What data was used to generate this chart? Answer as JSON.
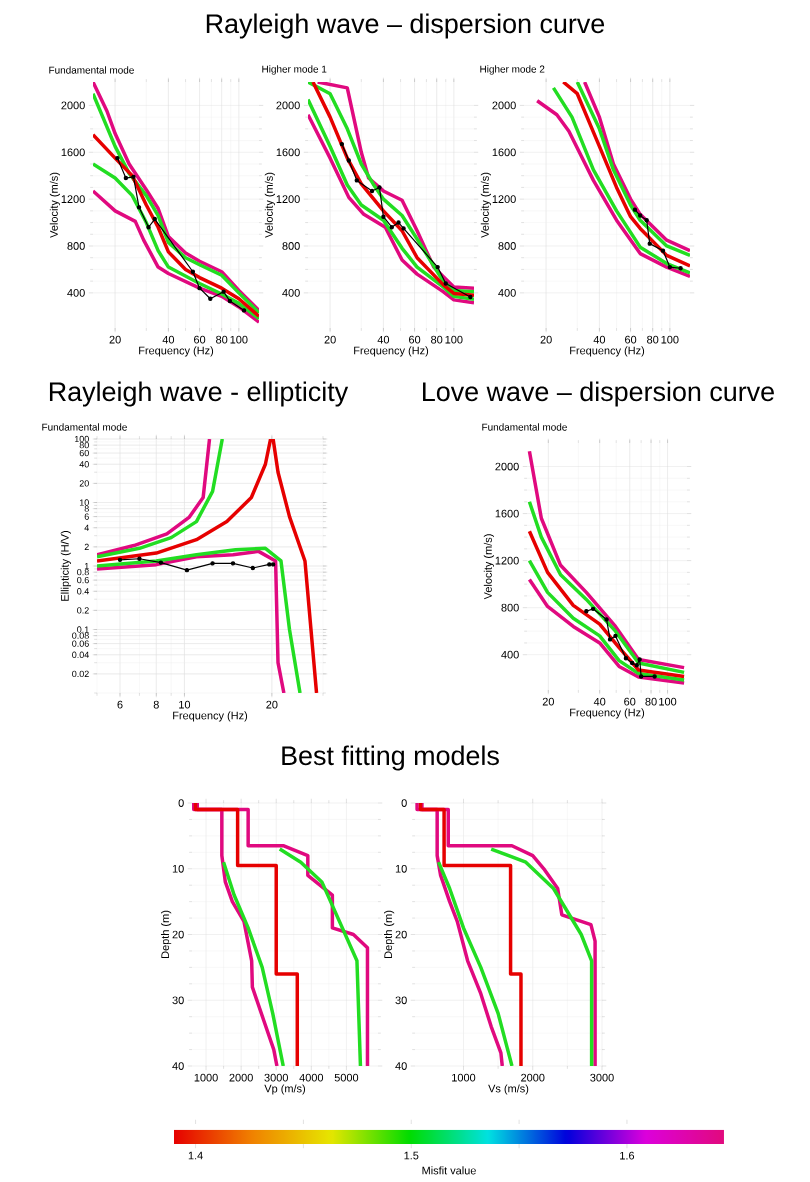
{
  "chart_data": [
    {
      "type": "line",
      "title": "Rayleigh wave – dispersion curve",
      "subtitle": "Fundamental mode",
      "xlabel": "Frequency (Hz)",
      "ylabel": "Velocity (m/s)",
      "log": "x",
      "grid": true,
      "xlim": [
        15,
        130
      ],
      "ylim": [
        100,
        2200
      ],
      "xticks": [
        20,
        40,
        60,
        80,
        100
      ],
      "yticks": [
        400,
        800,
        1200,
        1600,
        2000
      ],
      "series": [
        {
          "color": "#e0097f",
          "x": [
            15,
            18,
            20,
            24,
            30,
            35,
            40,
            50,
            60,
            80,
            100,
            130
          ],
          "values": [
            2200,
            1950,
            1760,
            1500,
            1280,
            1120,
            880,
            740,
            670,
            580,
            420,
            250
          ]
        },
        {
          "color": "#e0097f",
          "x": [
            15,
            20,
            26,
            29,
            35,
            40,
            60,
            80,
            100,
            130
          ],
          "values": [
            1270,
            1100,
            1010,
            850,
            620,
            565,
            440,
            370,
            280,
            150
          ]
        },
        {
          "color": "#22dd22",
          "x": [
            15,
            20,
            24,
            30,
            35,
            40,
            50,
            60,
            80,
            100,
            130
          ],
          "values": [
            2100,
            1650,
            1420,
            1230,
            1060,
            830,
            700,
            640,
            550,
            400,
            230
          ]
        },
        {
          "color": "#22dd22",
          "x": [
            15,
            20,
            25,
            30,
            35,
            40,
            60,
            80,
            100,
            130
          ],
          "values": [
            1500,
            1380,
            1230,
            1000,
            760,
            620,
            480,
            390,
            310,
            180
          ]
        },
        {
          "color": "#e60000",
          "x": [
            15,
            20,
            25,
            30,
            35,
            40,
            50,
            60,
            80,
            100,
            130
          ],
          "values": [
            1750,
            1550,
            1400,
            1150,
            960,
            750,
            600,
            530,
            440,
            350,
            200
          ]
        },
        {
          "color": "#000000",
          "marker": "circle",
          "x": [
            20.6,
            23,
            25.4,
            27.3,
            30.9,
            33.5,
            55,
            60,
            69,
            82,
            89,
            107
          ],
          "values": [
            1550,
            1380,
            1390,
            1130,
            960,
            1030,
            580,
            440,
            350,
            410,
            330,
            250
          ]
        }
      ]
    },
    {
      "type": "line",
      "subtitle": "Higher mode 1",
      "xlabel": "Frequency (Hz)",
      "ylabel": "Velocity (m/s)",
      "log": "x",
      "grid": true,
      "xlim": [
        15,
        130
      ],
      "ylim": [
        100,
        2200
      ],
      "xticks": [
        20,
        40,
        60,
        80,
        100
      ],
      "yticks": [
        400,
        800,
        1200,
        1600,
        2000
      ],
      "series": [
        {
          "color": "#e0097f",
          "x": [
            17,
            25,
            30,
            33,
            40,
            51,
            62,
            77,
            87,
            100,
            130
          ],
          "values": [
            2200,
            2150,
            1600,
            1380,
            1270,
            1190,
            930,
            620,
            540,
            450,
            440
          ]
        },
        {
          "color": "#e0097f",
          "x": [
            15,
            20,
            25.5,
            31,
            41,
            51,
            62,
            87,
            100,
            130
          ],
          "values": [
            1920,
            1550,
            1215,
            1070,
            960,
            680,
            560,
            410,
            340,
            315
          ]
        },
        {
          "color": "#22dd22",
          "x": [
            15,
            20,
            25,
            30,
            35,
            40,
            51,
            62,
            87,
            100,
            130
          ],
          "values": [
            2200,
            2100,
            1800,
            1500,
            1330,
            1200,
            1060,
            860,
            500,
            420,
            410
          ]
        },
        {
          "color": "#22dd22",
          "x": [
            15,
            20,
            25,
            30,
            40,
            51,
            62,
            87,
            100,
            130
          ],
          "values": [
            2050,
            1650,
            1320,
            1150,
            1020,
            780,
            620,
            450,
            370,
            345
          ]
        },
        {
          "color": "#e60000",
          "x": [
            16,
            20,
            25,
            30,
            40,
            51,
            62,
            87,
            100,
            130
          ],
          "values": [
            2200,
            1900,
            1550,
            1330,
            1100,
            930,
            700,
            470,
            395,
            380
          ]
        },
        {
          "color": "#000000",
          "marker": "circle",
          "x": [
            23.3,
            25.5,
            28.3,
            34.5,
            38,
            40,
            44.6,
            48.7,
            52,
            81,
            90,
            124
          ],
          "values": [
            1670,
            1530,
            1360,
            1270,
            1300,
            1050,
            960,
            1000,
            950,
            620,
            480,
            365
          ]
        }
      ]
    },
    {
      "type": "line",
      "subtitle": "Higher mode 2",
      "xlabel": "Frequency (Hz)",
      "ylabel": "Velocity (m/s)",
      "log": "x",
      "grid": true,
      "xlim": [
        15,
        130
      ],
      "ylim": [
        100,
        2200
      ],
      "xticks": [
        20,
        40,
        60,
        80,
        100
      ],
      "yticks": [
        400,
        800,
        1200,
        1600,
        2000
      ],
      "series": [
        {
          "color": "#e0097f",
          "x": [
            33,
            40,
            48,
            60,
            68,
            96,
            130
          ],
          "values": [
            2200,
            1900,
            1500,
            1200,
            1070,
            850,
            760
          ]
        },
        {
          "color": "#e0097f",
          "x": [
            17.8,
            23,
            26.9,
            37,
            50,
            68,
            96,
            130
          ],
          "values": [
            2040,
            1920,
            1780,
            1360,
            1020,
            735,
            620,
            540
          ]
        },
        {
          "color": "#22dd22",
          "x": [
            30,
            40,
            48,
            60,
            68,
            96,
            130
          ],
          "values": [
            2200,
            1800,
            1450,
            1150,
            1020,
            800,
            720
          ]
        },
        {
          "color": "#22dd22",
          "x": [
            22,
            28,
            37,
            50,
            68,
            96,
            130
          ],
          "values": [
            2150,
            1900,
            1450,
            1100,
            790,
            650,
            570
          ]
        },
        {
          "color": "#e60000",
          "x": [
            25,
            30,
            40,
            50,
            60,
            68,
            96,
            130
          ],
          "values": [
            2200,
            2100,
            1650,
            1300,
            1050,
            950,
            720,
            630
          ]
        },
        {
          "color": "#000000",
          "marker": "circle",
          "x": [
            63.5,
            68,
            74,
            77,
            91.5,
            100,
            115
          ],
          "values": [
            1110,
            1060,
            1020,
            820,
            760,
            620,
            610
          ]
        }
      ]
    },
    {
      "type": "line",
      "title": "Rayleigh wave - ellipticity",
      "subtitle": "Fundamental mode",
      "xlabel": "Frequency (Hz)",
      "ylabel": "Ellipticity (H/V)",
      "log": "xy",
      "grid": true,
      "xlim": [
        5,
        30
      ],
      "ylim": [
        0.01,
        100
      ],
      "xticks": [
        6,
        8,
        10,
        20
      ],
      "yticks": [
        0.02,
        0.04,
        0.06,
        0.08,
        0.1,
        0.2,
        0.4,
        0.6,
        0.8,
        1,
        2,
        4,
        6,
        8,
        10,
        20,
        40,
        60,
        80,
        100
      ],
      "series": [
        {
          "color": "#e0097f",
          "x": [
            5,
            6.7,
            8.7,
            10.4,
            11.6,
            12.2
          ],
          "values": [
            1.5,
            2.1,
            3.2,
            5.9,
            12,
            100
          ]
        },
        {
          "color": "#e0097f",
          "x": [
            5,
            8,
            11,
            14.7,
            18,
            20.6,
            21,
            22
          ],
          "values": [
            0.9,
            1.05,
            1.4,
            1.5,
            1.7,
            1.2,
            0.03,
            0.01
          ]
        },
        {
          "color": "#22dd22",
          "x": [
            5,
            7,
            9,
            11,
            12.5,
            13.5
          ],
          "values": [
            1.4,
            1.9,
            2.8,
            5,
            15,
            100
          ]
        },
        {
          "color": "#22dd22",
          "x": [
            5,
            8,
            11,
            15,
            19,
            21.5,
            23,
            25
          ],
          "values": [
            1.0,
            1.2,
            1.5,
            1.8,
            1.9,
            1.2,
            0.1,
            0.01
          ]
        },
        {
          "color": "#e60000",
          "x": [
            5,
            8,
            11,
            14,
            17,
            19,
            19.8,
            20.2,
            21,
            23,
            26,
            28.5
          ],
          "values": [
            1.2,
            1.6,
            2.6,
            5,
            12,
            40,
            100,
            100,
            30,
            6,
            1.2,
            0.01
          ]
        },
        {
          "color": "#000000",
          "marker": "circle",
          "x": [
            6,
            7,
            8.3,
            10.2,
            12.5,
            14.7,
            17.2,
            19.6,
            20.2
          ],
          "values": [
            1.25,
            1.3,
            1.13,
            0.86,
            1.1,
            1.1,
            0.93,
            1.06,
            1.06
          ]
        }
      ]
    },
    {
      "type": "line",
      "title": "Love wave – dispersion curve",
      "subtitle": "Fundamental mode",
      "xlabel": "Frequency (Hz)",
      "ylabel": "Velocity (m/s)",
      "log": "x",
      "grid": true,
      "xlim": [
        15,
        130
      ],
      "ylim": [
        100,
        2200
      ],
      "xticks": [
        20,
        40,
        60,
        80,
        100
      ],
      "yticks": [
        400,
        800,
        1200,
        1600,
        2000
      ],
      "series": [
        {
          "color": "#e0097f",
          "x": [
            15.5,
            18.2,
            23.6,
            33.4,
            49.5,
            67.6,
            125
          ],
          "values": [
            2130,
            1560,
            1160,
            930,
            640,
            360,
            290
          ]
        },
        {
          "color": "#e0097f",
          "x": [
            15.5,
            19.8,
            28,
            40,
            52,
            67.6,
            125
          ],
          "values": [
            1040,
            810,
            640,
            500,
            300,
            210,
            160
          ]
        },
        {
          "color": "#22dd22",
          "x": [
            15.5,
            18.2,
            23.6,
            33.4,
            49.5,
            67.6,
            125
          ],
          "values": [
            1700,
            1400,
            1080,
            870,
            600,
            330,
            250
          ]
        },
        {
          "color": "#22dd22",
          "x": [
            15.5,
            19.8,
            28,
            40,
            52,
            67.6,
            125
          ],
          "values": [
            1200,
            930,
            710,
            560,
            350,
            240,
            185
          ]
        },
        {
          "color": "#e60000",
          "x": [
            15.5,
            19.8,
            28,
            40,
            52,
            67.6,
            125
          ],
          "values": [
            1450,
            1100,
            820,
            660,
            460,
            270,
            215
          ]
        },
        {
          "color": "#000000",
          "marker": "circle",
          "x": [
            33.4,
            36.6,
            43.9,
            46,
            49.5,
            57,
            62,
            66,
            68.6,
            70,
            84
          ],
          "values": [
            770,
            790,
            700,
            530,
            560,
            370,
            330,
            310,
            360,
            215,
            215
          ]
        }
      ]
    },
    {
      "type": "line",
      "title": "Best fitting models",
      "xlabel": "Vp (m/s)",
      "ylabel": "Depth (m)",
      "grid": true,
      "xlim": [
        600,
        5900
      ],
      "ylim": [
        40,
        0
      ],
      "xticks": [
        1000,
        2000,
        3000,
        4000,
        5000
      ],
      "yticks": [
        0,
        10,
        20,
        30,
        40
      ],
      "series": [
        {
          "color": "#e0097f",
          "x": [
            750,
            750,
            2200,
            2200,
            3200,
            3900,
            3900,
            4600,
            4600,
            5200,
            5600,
            5600
          ],
          "values": [
            0,
            1,
            1,
            6.5,
            6.5,
            8,
            11,
            14,
            19,
            20,
            22,
            40
          ]
        },
        {
          "color": "#e0097f",
          "x": [
            650,
            650,
            1450,
            1450,
            1550,
            1750,
            2080,
            2300,
            2320,
            2640,
            2930,
            3020
          ],
          "values": [
            0,
            1,
            1,
            8,
            12,
            15,
            18,
            24,
            28,
            33,
            37.5,
            40
          ]
        },
        {
          "color": "#22dd22",
          "x": [
            3100,
            3700,
            4300,
            4800,
            5300,
            5400
          ],
          "values": [
            7,
            9,
            12,
            18,
            24,
            40
          ]
        },
        {
          "color": "#22dd22",
          "x": [
            1500,
            1800,
            2200,
            2600,
            2900,
            3200
          ],
          "values": [
            9,
            14,
            19,
            25,
            32,
            40
          ]
        },
        {
          "color": "#e60000",
          "x": [
            700,
            700,
            1900,
            1900,
            3000,
            3000,
            3600,
            3600
          ],
          "values": [
            0,
            1,
            1,
            9.5,
            9.5,
            26,
            26,
            40
          ]
        }
      ]
    },
    {
      "type": "line",
      "xlabel": "Vs (m/s)",
      "ylabel": "Depth (m)",
      "grid": true,
      "xlim": [
        300,
        3000
      ],
      "ylim": [
        40,
        0
      ],
      "xticks": [
        1000,
        2000,
        3000
      ],
      "yticks": [
        0,
        10,
        20,
        30,
        40
      ],
      "clabel": "Misfit value",
      "clim": [
        1.39,
        1.645
      ],
      "cticks": [
        1.4,
        {
          "value": 1.45,
          "label": null
        },
        1.5,
        {
          "value": 1.55,
          "label": null
        },
        1.6
      ],
      "series": [
        {
          "color": "#e0097f",
          "x": [
            400,
            400,
            780,
            780,
            1700,
            2000,
            2160,
            2360,
            2420,
            2840,
            2900,
            2900
          ],
          "values": [
            0,
            1,
            1,
            6.5,
            6.5,
            8,
            10,
            13,
            17,
            18.5,
            21,
            40
          ]
        },
        {
          "color": "#e0097f",
          "x": [
            330,
            330,
            620,
            620,
            670,
            800,
            910,
            1060,
            1250,
            1400,
            1540,
            1560
          ],
          "values": [
            0,
            1,
            1,
            8,
            11,
            15,
            18,
            24,
            29,
            34,
            38,
            40
          ]
        },
        {
          "color": "#22dd22",
          "x": [
            1400,
            1900,
            2300,
            2700,
            2850,
            2850
          ],
          "values": [
            7,
            9,
            13,
            20,
            24,
            40
          ]
        },
        {
          "color": "#22dd22",
          "x": [
            640,
            800,
            1000,
            1250,
            1500,
            1700
          ],
          "values": [
            9,
            13,
            19,
            25,
            32,
            40
          ]
        },
        {
          "color": "#e60000",
          "x": [
            380,
            380,
            720,
            720,
            1680,
            1680,
            1830,
            1830
          ],
          "values": [
            0,
            1,
            1,
            9.5,
            9.5,
            26,
            26,
            40
          ]
        }
      ]
    }
  ]
}
